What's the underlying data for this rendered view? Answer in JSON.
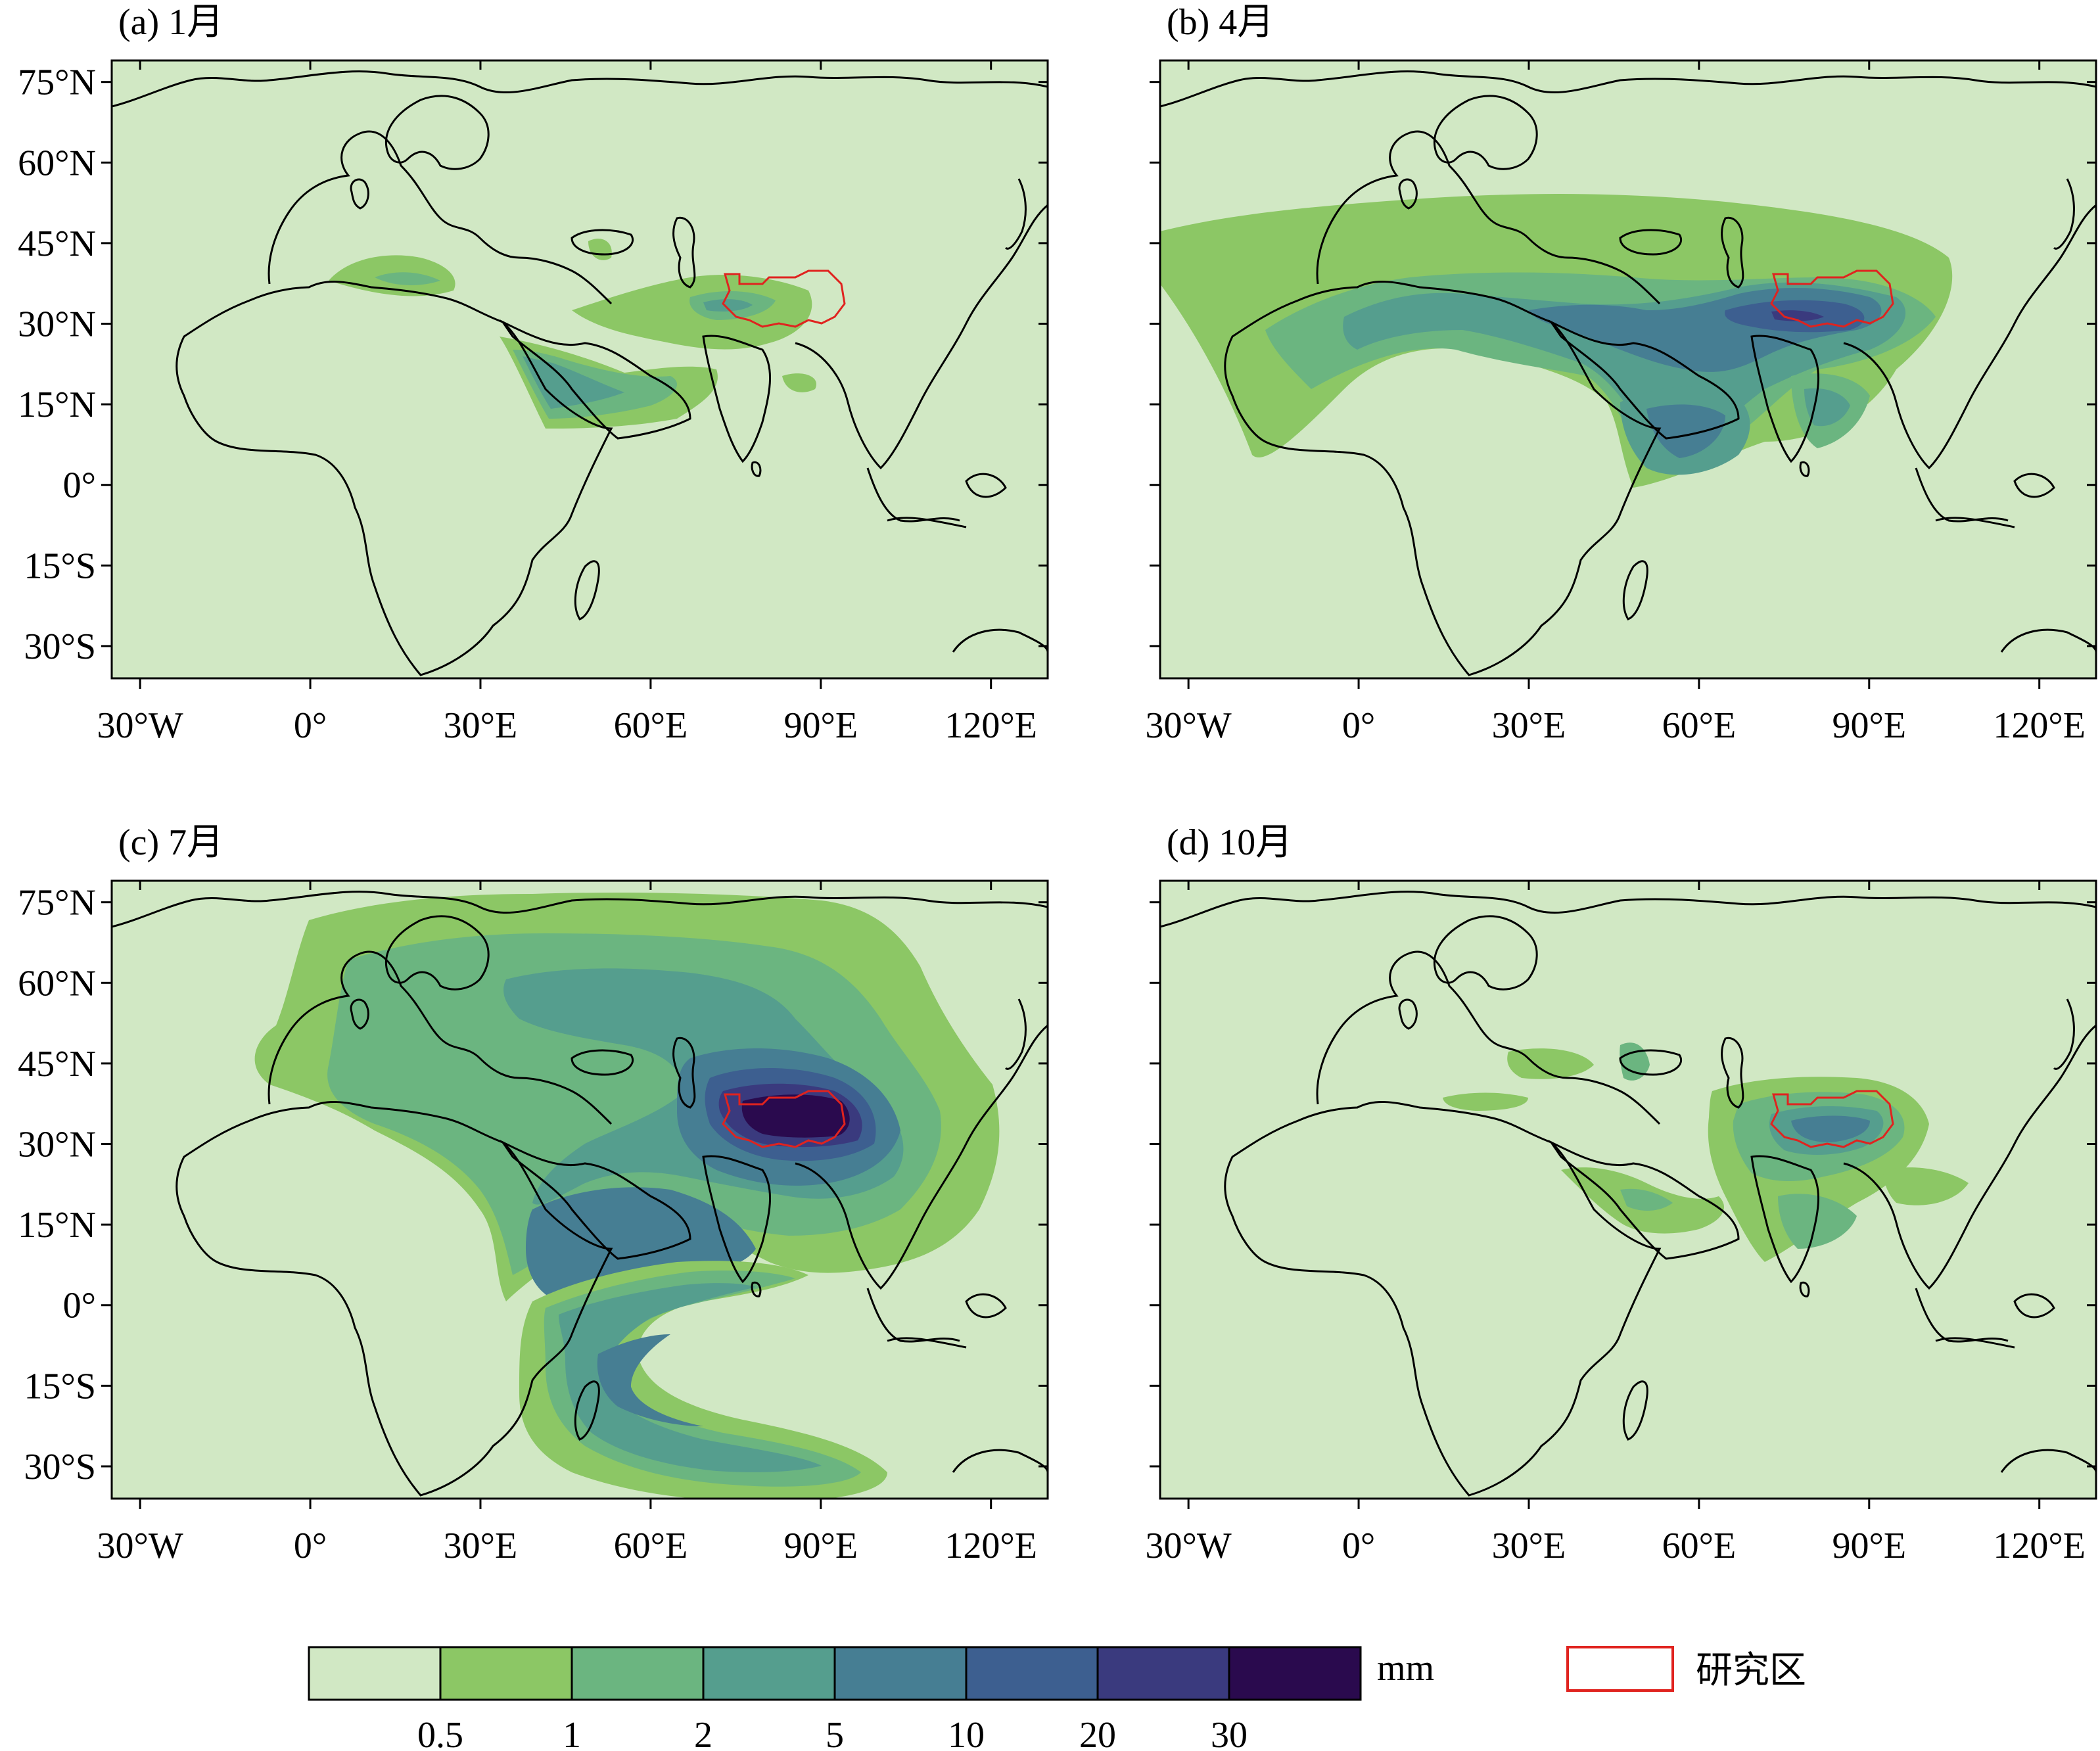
{
  "panels": [
    {
      "title": "(a) 1月",
      "season": "jan"
    },
    {
      "title": "(b) 4月",
      "season": "apr"
    },
    {
      "title": "(c) 7月",
      "season": "jul"
    },
    {
      "title": "(d) 10月",
      "season": "oct"
    }
  ],
  "axes": {
    "lat_labels": [
      "75°N",
      "60°N",
      "45°N",
      "30°N",
      "15°N",
      "0°",
      "15°S",
      "30°S"
    ],
    "lon_labels": [
      "30°W",
      "0°",
      "30°E",
      "60°E",
      "90°E",
      "120°E"
    ],
    "lat_range": [
      -36,
      79
    ],
    "lon_range": [
      -35,
      130
    ]
  },
  "colorbar": {
    "unit": "mm",
    "levels": [
      "0.5",
      "1",
      "2",
      "5",
      "10",
      "20",
      "30"
    ],
    "colors": [
      "#d1e8c4",
      "#8cc765",
      "#6bb580",
      "#559e8e",
      "#467e93",
      "#3d5f90",
      "#3a3a7e",
      "#2a0a4e"
    ]
  },
  "legend": {
    "study_area_label": "研究区",
    "study_area_color": "#e0231f"
  },
  "chart_data": {
    "type": "heatmap",
    "variable": "mm",
    "bins": [
      "<0.5",
      "0.5-1",
      "1-2",
      "2-5",
      "5-10",
      "10-20",
      "20-30",
      ">30"
    ]
  }
}
